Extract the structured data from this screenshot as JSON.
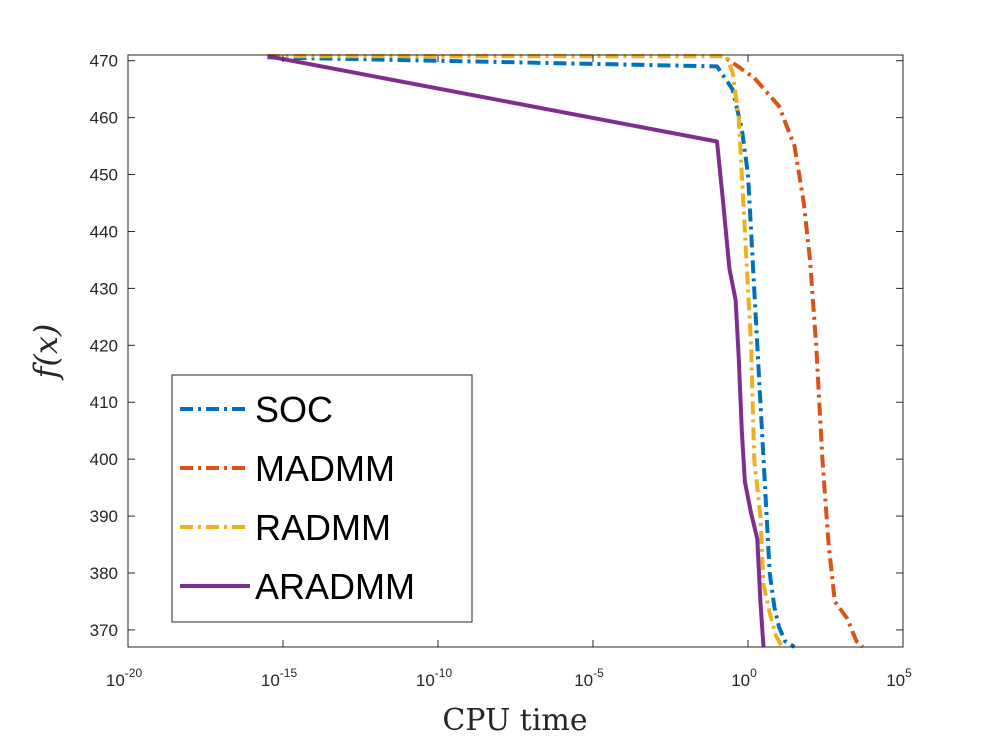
{
  "chart_data": {
    "type": "line",
    "title": "",
    "xlabel": "CPU time",
    "ylabel": "f(x)",
    "xscale": "log",
    "xlim_exponent": [
      -20,
      5
    ],
    "ylim": [
      367,
      471
    ],
    "grid": false,
    "legend_placement": "lower-left",
    "x_ticks": [
      {
        "base": "10",
        "exp": "-20",
        "value": -20
      },
      {
        "base": "10",
        "exp": "-15",
        "value": -15
      },
      {
        "base": "10",
        "exp": "-10",
        "value": -10
      },
      {
        "base": "10",
        "exp": "-5",
        "value": -5
      },
      {
        "base": "10",
        "exp": "0",
        "value": 0
      },
      {
        "base": "10",
        "exp": "5",
        "value": 5
      }
    ],
    "y_ticks": [
      "370",
      "380",
      "390",
      "400",
      "410",
      "420",
      "430",
      "440",
      "450",
      "460",
      "470"
    ],
    "series": [
      {
        "name": "SOC",
        "color": "#0072BD",
        "dash": "dashdot",
        "points": [
          [
            -15.5,
            470.6
          ],
          [
            -1.0,
            469.0
          ],
          [
            -0.5,
            465.0
          ],
          [
            -0.2,
            458.0
          ],
          [
            0.0,
            450.0
          ],
          [
            0.2,
            430.0
          ],
          [
            0.4,
            410.0
          ],
          [
            0.55,
            395.0
          ],
          [
            0.7,
            380.0
          ],
          [
            0.85,
            374.0
          ],
          [
            1.0,
            370.5
          ],
          [
            1.2,
            368.0
          ],
          [
            1.5,
            367.0
          ]
        ]
      },
      {
        "name": "MADMM",
        "color": "#D95319",
        "dash": "dashdot",
        "points": [
          [
            -15.5,
            470.8
          ],
          [
            -0.8,
            470.8
          ],
          [
            0.2,
            467.0
          ],
          [
            1.0,
            462.0
          ],
          [
            1.5,
            455.0
          ],
          [
            1.8,
            445.0
          ],
          [
            2.0,
            435.0
          ],
          [
            2.2,
            420.0
          ],
          [
            2.4,
            400.0
          ],
          [
            2.6,
            385.0
          ],
          [
            2.8,
            375.0
          ],
          [
            3.2,
            372.0
          ],
          [
            3.5,
            368.0
          ],
          [
            3.7,
            367.0
          ]
        ]
      },
      {
        "name": "RADMM",
        "color": "#EDB120",
        "dash": "dashdot",
        "points": [
          [
            -15.5,
            470.8
          ],
          [
            -0.7,
            470.8
          ],
          [
            -0.5,
            468.0
          ],
          [
            -0.3,
            460.0
          ],
          [
            -0.2,
            450.0
          ],
          [
            -0.1,
            440.0
          ],
          [
            0.0,
            430.0
          ],
          [
            0.1,
            420.0
          ],
          [
            0.2,
            400.0
          ],
          [
            0.4,
            390.0
          ],
          [
            0.5,
            378.0
          ],
          [
            0.7,
            373.0
          ],
          [
            0.9,
            369.0
          ],
          [
            1.1,
            367.0
          ]
        ]
      },
      {
        "name": "ARADMM",
        "color": "#7E2F8E",
        "dash": "solid",
        "points": [
          [
            -15.5,
            470.8
          ],
          [
            -1.0,
            455.8
          ],
          [
            -0.8,
            445.0
          ],
          [
            -0.6,
            433.5
          ],
          [
            -0.4,
            428.0
          ],
          [
            -0.3,
            418.0
          ],
          [
            -0.2,
            405.0
          ],
          [
            -0.1,
            396.0
          ],
          [
            0.1,
            390.5
          ],
          [
            0.3,
            386.0
          ],
          [
            0.4,
            375.0
          ],
          [
            0.5,
            367.0
          ]
        ]
      }
    ]
  }
}
